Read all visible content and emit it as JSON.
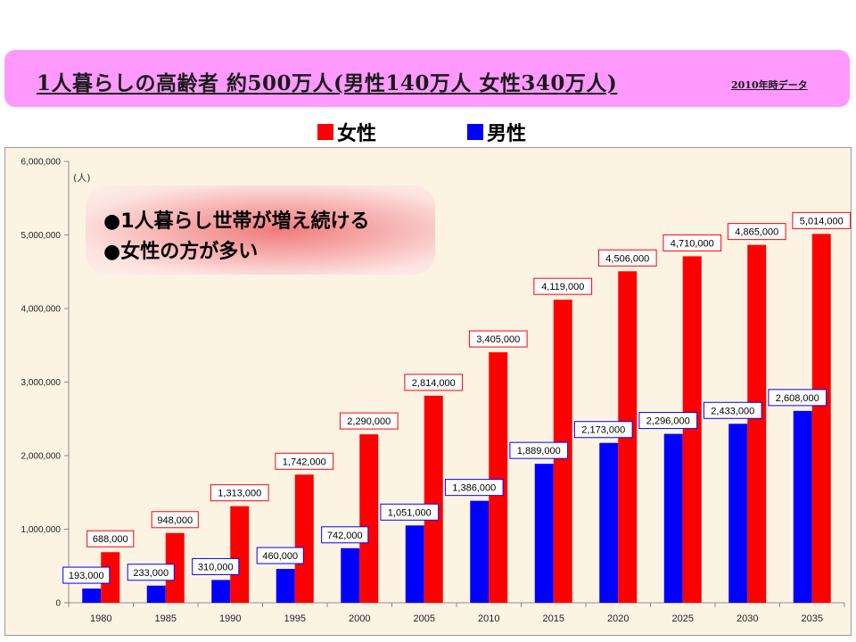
{
  "header": {
    "title": "1人暮らしの高齢者 約500万人(男性140万人 女性340万人)",
    "note": "2010年時データ"
  },
  "legend": {
    "female_label": "女性",
    "male_label": "男性"
  },
  "annotation": {
    "line1": "●1人暮らし世帯が増え続ける",
    "line2": "●女性の方が多い"
  },
  "colors": {
    "female": "#ff0000",
    "male": "#0000ff",
    "banner": "#ff99ff",
    "plot_background": "#fdf3e3"
  },
  "chart_data": {
    "type": "bar",
    "title": "",
    "unit_label": "(人)",
    "categories": [
      "1980",
      "1985",
      "1990",
      "1995",
      "2000",
      "2005",
      "2010",
      "2015",
      "2020",
      "2025",
      "2030",
      "2035"
    ],
    "series": [
      {
        "name": "男性",
        "values": [
          193000,
          233000,
          310000,
          460000,
          742000,
          1051000,
          1386000,
          1889000,
          2173000,
          2296000,
          2433000,
          2608000
        ],
        "labels": [
          "193,000",
          "233,000",
          "310,000",
          "460,000",
          "742,000",
          "1,051,000",
          "1,386,000",
          "1,889,000",
          "2,173,000",
          "2,296,000",
          "2,433,000",
          "2,608,000"
        ]
      },
      {
        "name": "女性",
        "values": [
          688000,
          948000,
          1313000,
          1742000,
          2290000,
          2814000,
          3405000,
          4119000,
          4506000,
          4710000,
          4865000,
          5014000
        ],
        "labels": [
          "688,000",
          "948,000",
          "1,313,000",
          "1,742,000",
          "2,290,000",
          "2,814,000",
          "3,405,000",
          "4,119,000",
          "4,506,000",
          "4,710,000",
          "4,865,000",
          "5,014,000"
        ]
      }
    ],
    "ylim": [
      0,
      6000000
    ],
    "yticks": [
      0,
      1000000,
      2000000,
      3000000,
      4000000,
      5000000,
      6000000
    ],
    "ytick_labels": [
      "0",
      "1,000,000",
      "2,000,000",
      "3,000,000",
      "4,000,000",
      "5,000,000",
      "6,000,000"
    ],
    "grid": false,
    "legend_position": "top-center"
  }
}
